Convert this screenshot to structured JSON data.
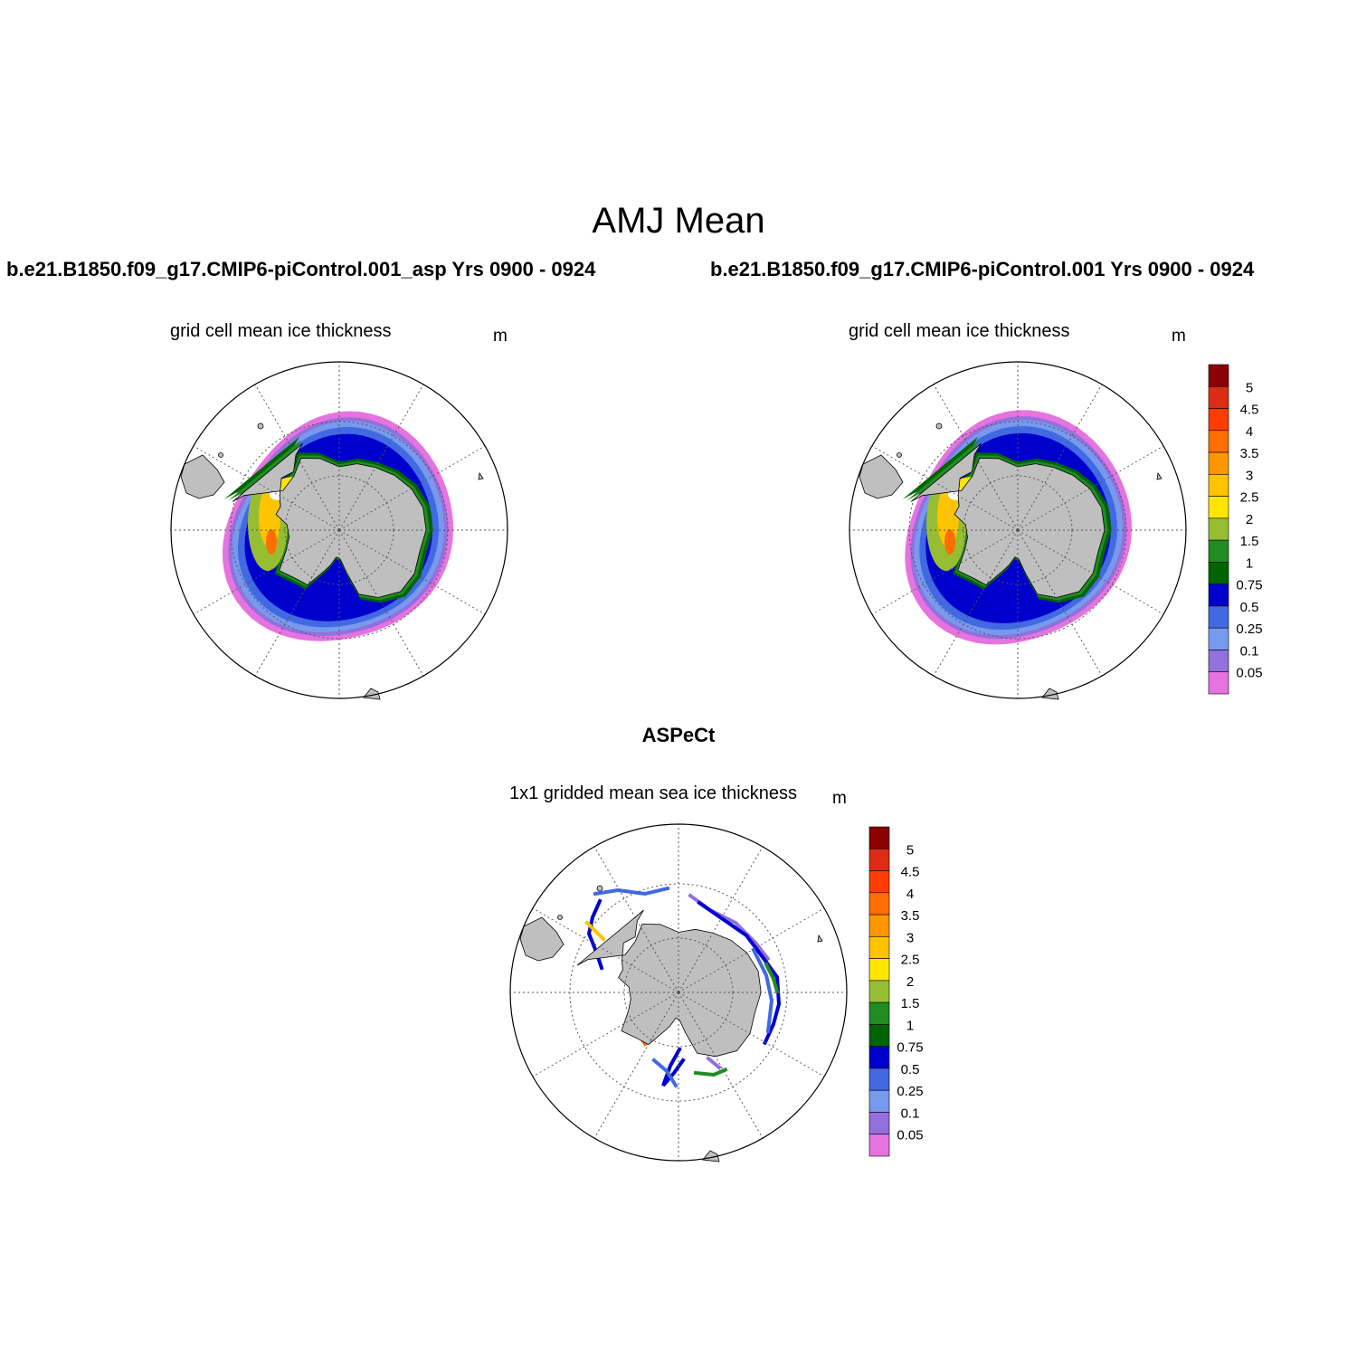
{
  "figure": {
    "title": "AMJ Mean",
    "panels": [
      {
        "case_title": "b.e21.B1850.f09_g17.CMIP6-piControl.001_asp  Yrs 0900 - 0924",
        "variable_label": "grid cell mean ice thickness",
        "units": "m"
      },
      {
        "case_title": "b.e21.B1850.f09_g17.CMIP6-piControl.001  Yrs 0900 - 0924",
        "variable_label": "grid cell mean ice thickness",
        "units": "m"
      }
    ],
    "observation": {
      "title": "ASPeCt",
      "variable_label": "1x1 gridded mean sea ice thickness",
      "units": "m"
    }
  },
  "colorbar": {
    "labels": [
      "5",
      "4.5",
      "4",
      "3.5",
      "3",
      "2.5",
      "2",
      "1.5",
      "1",
      "0.75",
      "0.5",
      "0.25",
      "0.1",
      "0.05"
    ],
    "colors": [
      "#8b0000",
      "#dc2d14",
      "#ff3c00",
      "#ff6e00",
      "#ff9600",
      "#ffc300",
      "#ffe600",
      "#97be32",
      "#228b22",
      "#006400",
      "#0000cd",
      "#4169e1",
      "#7799ee",
      "#9370db",
      "#e673e0"
    ]
  },
  "map_colors": {
    "land": "#bfbfbf",
    "ocean": "#ffffff",
    "grid": "#555555"
  }
}
